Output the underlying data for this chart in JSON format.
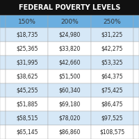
{
  "title": "FEDERAL POVERTY LEVELS",
  "title_bg": "#111111",
  "title_color": "#ffffff",
  "header_bg": "#6aaee0",
  "header_color": "#ffffff",
  "row_bg_even": "#ffffff",
  "row_bg_odd": "#d6e8f7",
  "border_color": "#aaaaaa",
  "left_col_bg_header": "#6aaee0",
  "left_col_bg_even": "#ffffff",
  "left_col_bg_odd": "#d6e8f7",
  "right_col_bg_header": "#6aaee0",
  "right_col_bg_even": "#ffffff",
  "right_col_bg_odd": "#d6e8f7",
  "columns": [
    "150%",
    "200%",
    "250%"
  ],
  "rows": [
    [
      "$18,735",
      "$24,980",
      "$31,225"
    ],
    [
      "$25,365",
      "$33,820",
      "$42,275"
    ],
    [
      "$31,995",
      "$42,660",
      "$53,325"
    ],
    [
      "$38,625",
      "$51,500",
      "$64,375"
    ],
    [
      "$45,255",
      "$60,340",
      "$75,425"
    ],
    [
      "$51,885",
      "$69,180",
      "$86,475"
    ],
    [
      "$58,515",
      "$78,020",
      "$97,525"
    ],
    [
      "$65,145",
      "$86,860",
      "$108,575"
    ]
  ],
  "text_color": "#222222",
  "header_text_color": "#333333",
  "title_fontsize": 7.0,
  "header_fontsize": 6.5,
  "data_fontsize": 5.5,
  "fig_bg": "#111111"
}
